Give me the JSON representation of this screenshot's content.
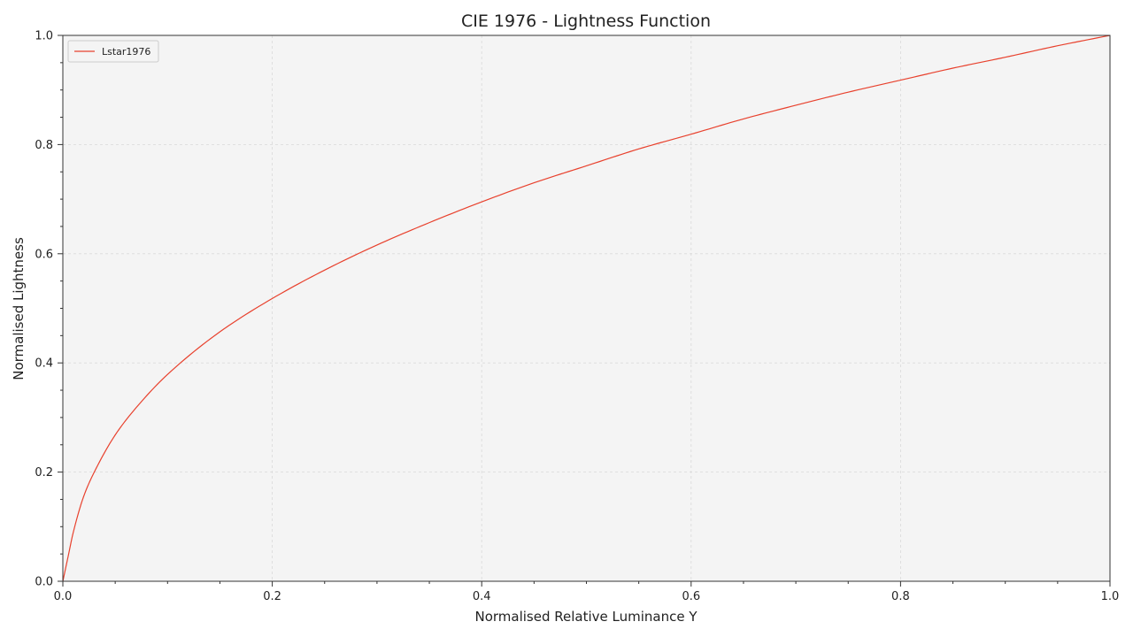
{
  "chart_data": {
    "type": "line",
    "title": "CIE 1976 - Lightness Function",
    "xlabel": "Normalised Relative Luminance Y",
    "ylabel": "Normalised Lightness",
    "xlim": [
      0,
      1
    ],
    "ylim": [
      0,
      1
    ],
    "x_ticks": [
      "0.0",
      "0.2",
      "0.4",
      "0.6",
      "0.8",
      "1.0"
    ],
    "y_ticks": [
      "0.0",
      "0.2",
      "0.4",
      "0.6",
      "0.8",
      "1.0"
    ],
    "grid": true,
    "legend_position": "top-left",
    "series": [
      {
        "name": "Lstar1976",
        "color": "#e8412d",
        "x": [
          0.0,
          0.005,
          0.01,
          0.02,
          0.03,
          0.05,
          0.07,
          0.1,
          0.15,
          0.2,
          0.25,
          0.3,
          0.35,
          0.4,
          0.45,
          0.5,
          0.55,
          0.6,
          0.65,
          0.7,
          0.75,
          0.8,
          0.85,
          0.9,
          0.95,
          1.0
        ],
        "values": [
          0.0,
          0.045,
          0.09,
          0.156,
          0.2,
          0.268,
          0.318,
          0.379,
          0.457,
          0.518,
          0.57,
          0.616,
          0.657,
          0.695,
          0.73,
          0.761,
          0.792,
          0.819,
          0.847,
          0.872,
          0.896,
          0.918,
          0.94,
          0.96,
          0.981,
          1.0
        ]
      }
    ]
  },
  "colors": {
    "plot_background": "#f4f4f4",
    "grid": "#d9d9d9",
    "axis": "#333333"
  }
}
